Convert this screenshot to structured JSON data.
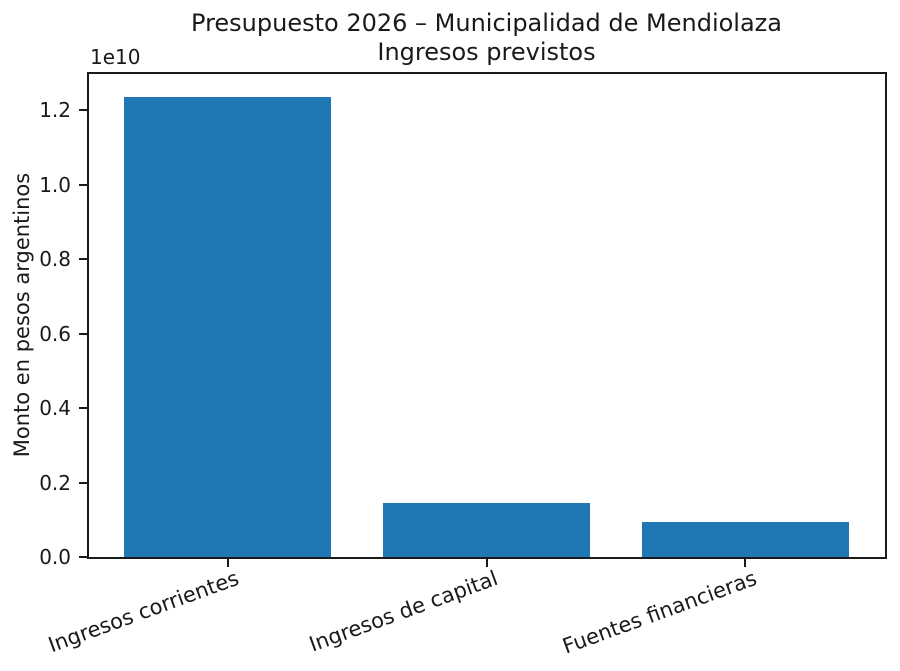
{
  "chart_data": {
    "type": "bar",
    "title": "Presupuesto 2026 – Municipalidad de Mendiolaza",
    "subtitle": "Ingresos previstos",
    "categories": [
      "Ingresos corrientes",
      "Ingresos de capital",
      "Fuentes financieras"
    ],
    "values": [
      12350000000,
      1450000000,
      950000000
    ],
    "xlabel": "",
    "ylabel": "Monto en pesos argentinos",
    "y_offset_text": "1e10",
    "ylim": [
      0,
      13000000000
    ],
    "yticks": [
      0,
      2000000000,
      4000000000,
      6000000000,
      8000000000,
      10000000000,
      12000000000
    ],
    "ytick_labels": [
      "0.0",
      "0.2",
      "0.4",
      "0.6",
      "0.8",
      "1.0",
      "1.2"
    ],
    "x_tick_rotation_deg": 20,
    "bar_color": "#1f77b4",
    "axis_color": "#1a1a1a",
    "background_color": "#ffffff",
    "grid": false,
    "legend": "none"
  }
}
